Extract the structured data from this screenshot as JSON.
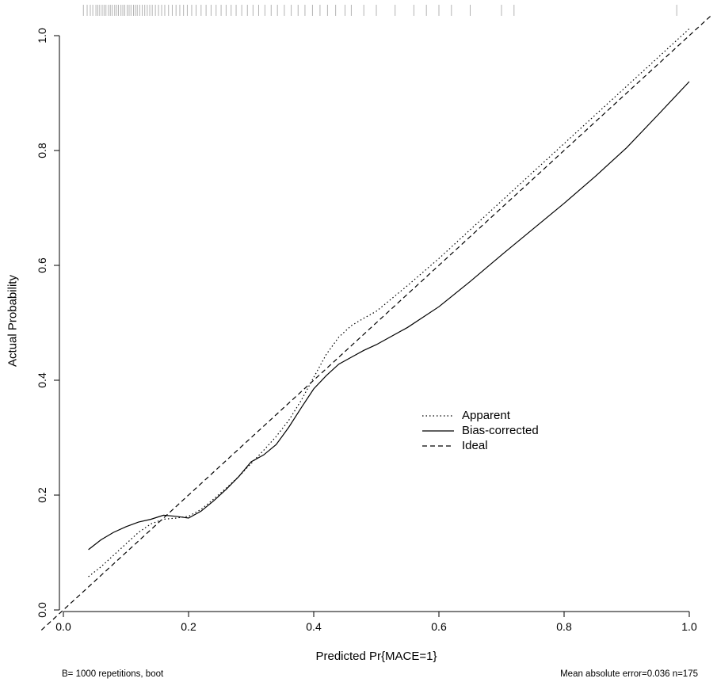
{
  "figure": {
    "background": "#ffffff"
  },
  "chart_data": {
    "type": "line",
    "title": "",
    "xlabel": "Predicted Pr{MACE=1}",
    "ylabel": "Actual Probability",
    "xlim": [
      -0.04,
      1.04
    ],
    "ylim": [
      -0.04,
      1.04
    ],
    "grid": false,
    "x_ticks": [
      0,
      0.2,
      0.4,
      0.6,
      0.8,
      1
    ],
    "x_tick_labels": [
      "0.0",
      "0.2",
      "0.4",
      "0.6",
      "0.8",
      "1.0"
    ],
    "y_ticks": [
      0,
      0.2,
      0.4,
      0.6,
      0.8,
      1
    ],
    "y_tick_labels": [
      "0.0",
      "0.2",
      "0.4",
      "0.6",
      "0.8",
      "1.0"
    ],
    "legend": {
      "position": "inside-right-center"
    },
    "colors": {
      "line": "#000000",
      "rug": "#b3b3b3",
      "background": "#ffffff"
    },
    "series": [
      {
        "name": "Apparent",
        "line_style": "dotted",
        "points": [
          [
            0.04,
            0.058
          ],
          [
            0.06,
            0.075
          ],
          [
            0.08,
            0.095
          ],
          [
            0.1,
            0.115
          ],
          [
            0.12,
            0.135
          ],
          [
            0.14,
            0.15
          ],
          [
            0.16,
            0.158
          ],
          [
            0.18,
            0.16
          ],
          [
            0.2,
            0.163
          ],
          [
            0.22,
            0.175
          ],
          [
            0.24,
            0.193
          ],
          [
            0.26,
            0.212
          ],
          [
            0.28,
            0.232
          ],
          [
            0.3,
            0.255
          ],
          [
            0.32,
            0.278
          ],
          [
            0.34,
            0.302
          ],
          [
            0.36,
            0.33
          ],
          [
            0.38,
            0.365
          ],
          [
            0.4,
            0.405
          ],
          [
            0.42,
            0.445
          ],
          [
            0.44,
            0.475
          ],
          [
            0.46,
            0.495
          ],
          [
            0.48,
            0.508
          ],
          [
            0.5,
            0.52
          ],
          [
            0.55,
            0.565
          ],
          [
            0.6,
            0.612
          ],
          [
            0.65,
            0.662
          ],
          [
            0.7,
            0.712
          ],
          [
            0.75,
            0.762
          ],
          [
            0.8,
            0.812
          ],
          [
            0.85,
            0.862
          ],
          [
            0.9,
            0.912
          ],
          [
            0.95,
            0.962
          ],
          [
            1.0,
            1.012
          ]
        ]
      },
      {
        "name": "Bias-corrected",
        "line_style": "solid",
        "points": [
          [
            0.04,
            0.105
          ],
          [
            0.06,
            0.122
          ],
          [
            0.08,
            0.135
          ],
          [
            0.1,
            0.145
          ],
          [
            0.12,
            0.153
          ],
          [
            0.14,
            0.158
          ],
          [
            0.16,
            0.165
          ],
          [
            0.18,
            0.163
          ],
          [
            0.2,
            0.16
          ],
          [
            0.22,
            0.172
          ],
          [
            0.24,
            0.19
          ],
          [
            0.26,
            0.21
          ],
          [
            0.28,
            0.232
          ],
          [
            0.3,
            0.258
          ],
          [
            0.32,
            0.27
          ],
          [
            0.34,
            0.288
          ],
          [
            0.36,
            0.318
          ],
          [
            0.38,
            0.352
          ],
          [
            0.4,
            0.385
          ],
          [
            0.42,
            0.408
          ],
          [
            0.44,
            0.428
          ],
          [
            0.46,
            0.44
          ],
          [
            0.48,
            0.452
          ],
          [
            0.5,
            0.462
          ],
          [
            0.55,
            0.492
          ],
          [
            0.6,
            0.528
          ],
          [
            0.65,
            0.572
          ],
          [
            0.7,
            0.618
          ],
          [
            0.75,
            0.663
          ],
          [
            0.8,
            0.708
          ],
          [
            0.85,
            0.755
          ],
          [
            0.9,
            0.805
          ],
          [
            0.95,
            0.862
          ],
          [
            1.0,
            0.92
          ]
        ]
      },
      {
        "name": "Ideal",
        "line_style": "dashed",
        "points": [
          [
            -0.035,
            -0.035
          ],
          [
            1.035,
            1.035
          ]
        ]
      }
    ],
    "rug_x": [
      0.032,
      0.038,
      0.043,
      0.047,
      0.052,
      0.055,
      0.058,
      0.062,
      0.065,
      0.068,
      0.072,
      0.075,
      0.078,
      0.082,
      0.085,
      0.088,
      0.092,
      0.095,
      0.098,
      0.102,
      0.105,
      0.108,
      0.112,
      0.115,
      0.118,
      0.122,
      0.126,
      0.13,
      0.134,
      0.138,
      0.142,
      0.147,
      0.152,
      0.157,
      0.162,
      0.168,
      0.174,
      0.18,
      0.186,
      0.192,
      0.198,
      0.205,
      0.212,
      0.22,
      0.228,
      0.236,
      0.244,
      0.252,
      0.26,
      0.268,
      0.276,
      0.285,
      0.294,
      0.303,
      0.312,
      0.322,
      0.332,
      0.342,
      0.353,
      0.364,
      0.375,
      0.386,
      0.398,
      0.41,
      0.422,
      0.435,
      0.45,
      0.46,
      0.48,
      0.5,
      0.53,
      0.56,
      0.58,
      0.6,
      0.62,
      0.65,
      0.7,
      0.72,
      0.98
    ],
    "annotations": {
      "bottom_left": "B= 1000 repetitions, boot",
      "bottom_right": "Mean absolute error=0.036 n=175"
    }
  }
}
